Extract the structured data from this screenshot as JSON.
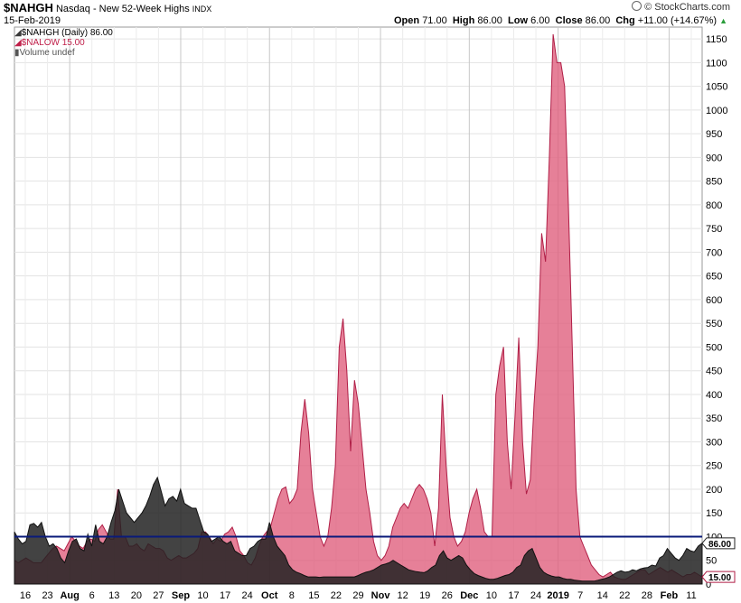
{
  "header": {
    "symbol": "$NAHGH",
    "name": "Nasdaq - New 52-Week Highs",
    "exchange": "INDX",
    "date": "15-Feb-2019",
    "branding": "© StockCharts.com",
    "ohlc": {
      "open_label": "Open",
      "open": "71.00",
      "high_label": "High",
      "high": "86.00",
      "low_label": "Low",
      "low": "6.00",
      "close_label": "Close",
      "close": "86.00",
      "chg_label": "Chg",
      "chg": "+11.00 (+14.67%)"
    },
    "legend": [
      {
        "text": "$NAHGH (Daily) 86.00",
        "color": "#3a3a3a"
      },
      {
        "text": "$NALOW 15.00",
        "color": "#c0204a"
      },
      {
        "text": "Volume undef",
        "color": "#555555"
      }
    ]
  },
  "chart_data": {
    "type": "area",
    "title": "$NAHGH Nasdaq - New 52-Week Highs INDX",
    "x_ticks": [
      "16",
      "23",
      "Aug",
      "6",
      "13",
      "20",
      "27",
      "Sep",
      "10",
      "17",
      "24",
      "Oct",
      "8",
      "15",
      "22",
      "29",
      "Nov",
      "12",
      "19",
      "26",
      "Dec",
      "10",
      "17",
      "24",
      "2019",
      "7",
      "14",
      "22",
      "28",
      "Feb",
      "11"
    ],
    "y_ticks": [
      0,
      50,
      100,
      150,
      200,
      250,
      300,
      350,
      400,
      450,
      500,
      550,
      600,
      650,
      700,
      750,
      800,
      850,
      900,
      950,
      1000,
      1050,
      1100,
      1150
    ],
    "ylim": [
      0,
      1175
    ],
    "reference_line": 100,
    "last_labels": [
      "86.00",
      "15.00"
    ],
    "series": [
      {
        "name": "$NAHGH",
        "color": "#3a3a3a",
        "values": [
          110,
          95,
          85,
          90,
          125,
          128,
          120,
          130,
          100,
          80,
          85,
          75,
          55,
          45,
          70,
          90,
          95,
          75,
          70,
          105,
          80,
          125,
          90,
          85,
          100,
          130,
          155,
          200,
          175,
          150,
          140,
          130,
          140,
          150,
          165,
          185,
          210,
          225,
          195,
          165,
          180,
          185,
          175,
          200,
          170,
          165,
          160,
          160,
          135,
          110,
          105,
          90,
          95,
          100,
          90,
          85,
          90,
          70,
          65,
          60,
          60,
          75,
          80,
          90,
          95,
          95,
          130,
          100,
          80,
          70,
          60,
          40,
          30,
          25,
          22,
          18,
          15,
          15,
          15,
          14,
          15,
          15,
          15,
          15,
          15,
          15,
          15,
          15,
          15,
          18,
          22,
          25,
          27,
          30,
          35,
          40,
          42,
          45,
          50,
          45,
          40,
          35,
          30,
          28,
          26,
          25,
          24,
          28,
          35,
          40,
          60,
          70,
          55,
          50,
          55,
          60,
          55,
          40,
          30,
          22,
          18,
          15,
          12,
          10,
          10,
          12,
          15,
          18,
          20,
          25,
          35,
          40,
          60,
          70,
          75,
          55,
          35,
          25,
          20,
          17,
          15,
          15,
          12,
          10,
          10,
          8,
          7,
          6,
          6,
          6,
          6,
          8,
          10,
          12,
          15,
          20,
          25,
          28,
          25,
          26,
          30,
          28,
          32,
          34,
          35,
          40,
          38,
          55,
          60,
          75,
          65,
          55,
          50,
          60,
          75,
          70,
          68,
          80,
          86
        ]
      },
      {
        "name": "$NALOW",
        "color": "#c0204a",
        "values": [
          50,
          45,
          50,
          55,
          50,
          45,
          45,
          45,
          55,
          65,
          75,
          80,
          75,
          70,
          85,
          100,
          90,
          80,
          75,
          90,
          95,
          90,
          115,
          125,
          110,
          95,
          95,
          200,
          100,
          100,
          80,
          80,
          85,
          75,
          70,
          85,
          80,
          75,
          75,
          70,
          55,
          50,
          55,
          60,
          55,
          55,
          60,
          65,
          75,
          110,
          110,
          100,
          85,
          95,
          90,
          105,
          110,
          120,
          100,
          70,
          60,
          45,
          40,
          55,
          80,
          100,
          110,
          120,
          150,
          180,
          200,
          205,
          170,
          180,
          200,
          320,
          390,
          320,
          200,
          150,
          100,
          80,
          100,
          160,
          250,
          500,
          560,
          450,
          280,
          430,
          380,
          290,
          200,
          150,
          90,
          60,
          50,
          60,
          80,
          120,
          140,
          160,
          170,
          160,
          180,
          200,
          210,
          200,
          180,
          150,
          80,
          160,
          400,
          250,
          140,
          100,
          80,
          90,
          110,
          150,
          180,
          200,
          160,
          110,
          100,
          100,
          400,
          460,
          500,
          300,
          200,
          350,
          520,
          300,
          190,
          220,
          380,
          500,
          740,
          680,
          900,
          1160,
          1100,
          1100,
          1050,
          800,
          500,
          200,
          100,
          80,
          60,
          40,
          30,
          20,
          15,
          20,
          25,
          15,
          12,
          10,
          10,
          15,
          20,
          25,
          30,
          30,
          20,
          25,
          30,
          35,
          30,
          25,
          30,
          25,
          20,
          15,
          20,
          20,
          25,
          20,
          15
        ]
      }
    ]
  }
}
